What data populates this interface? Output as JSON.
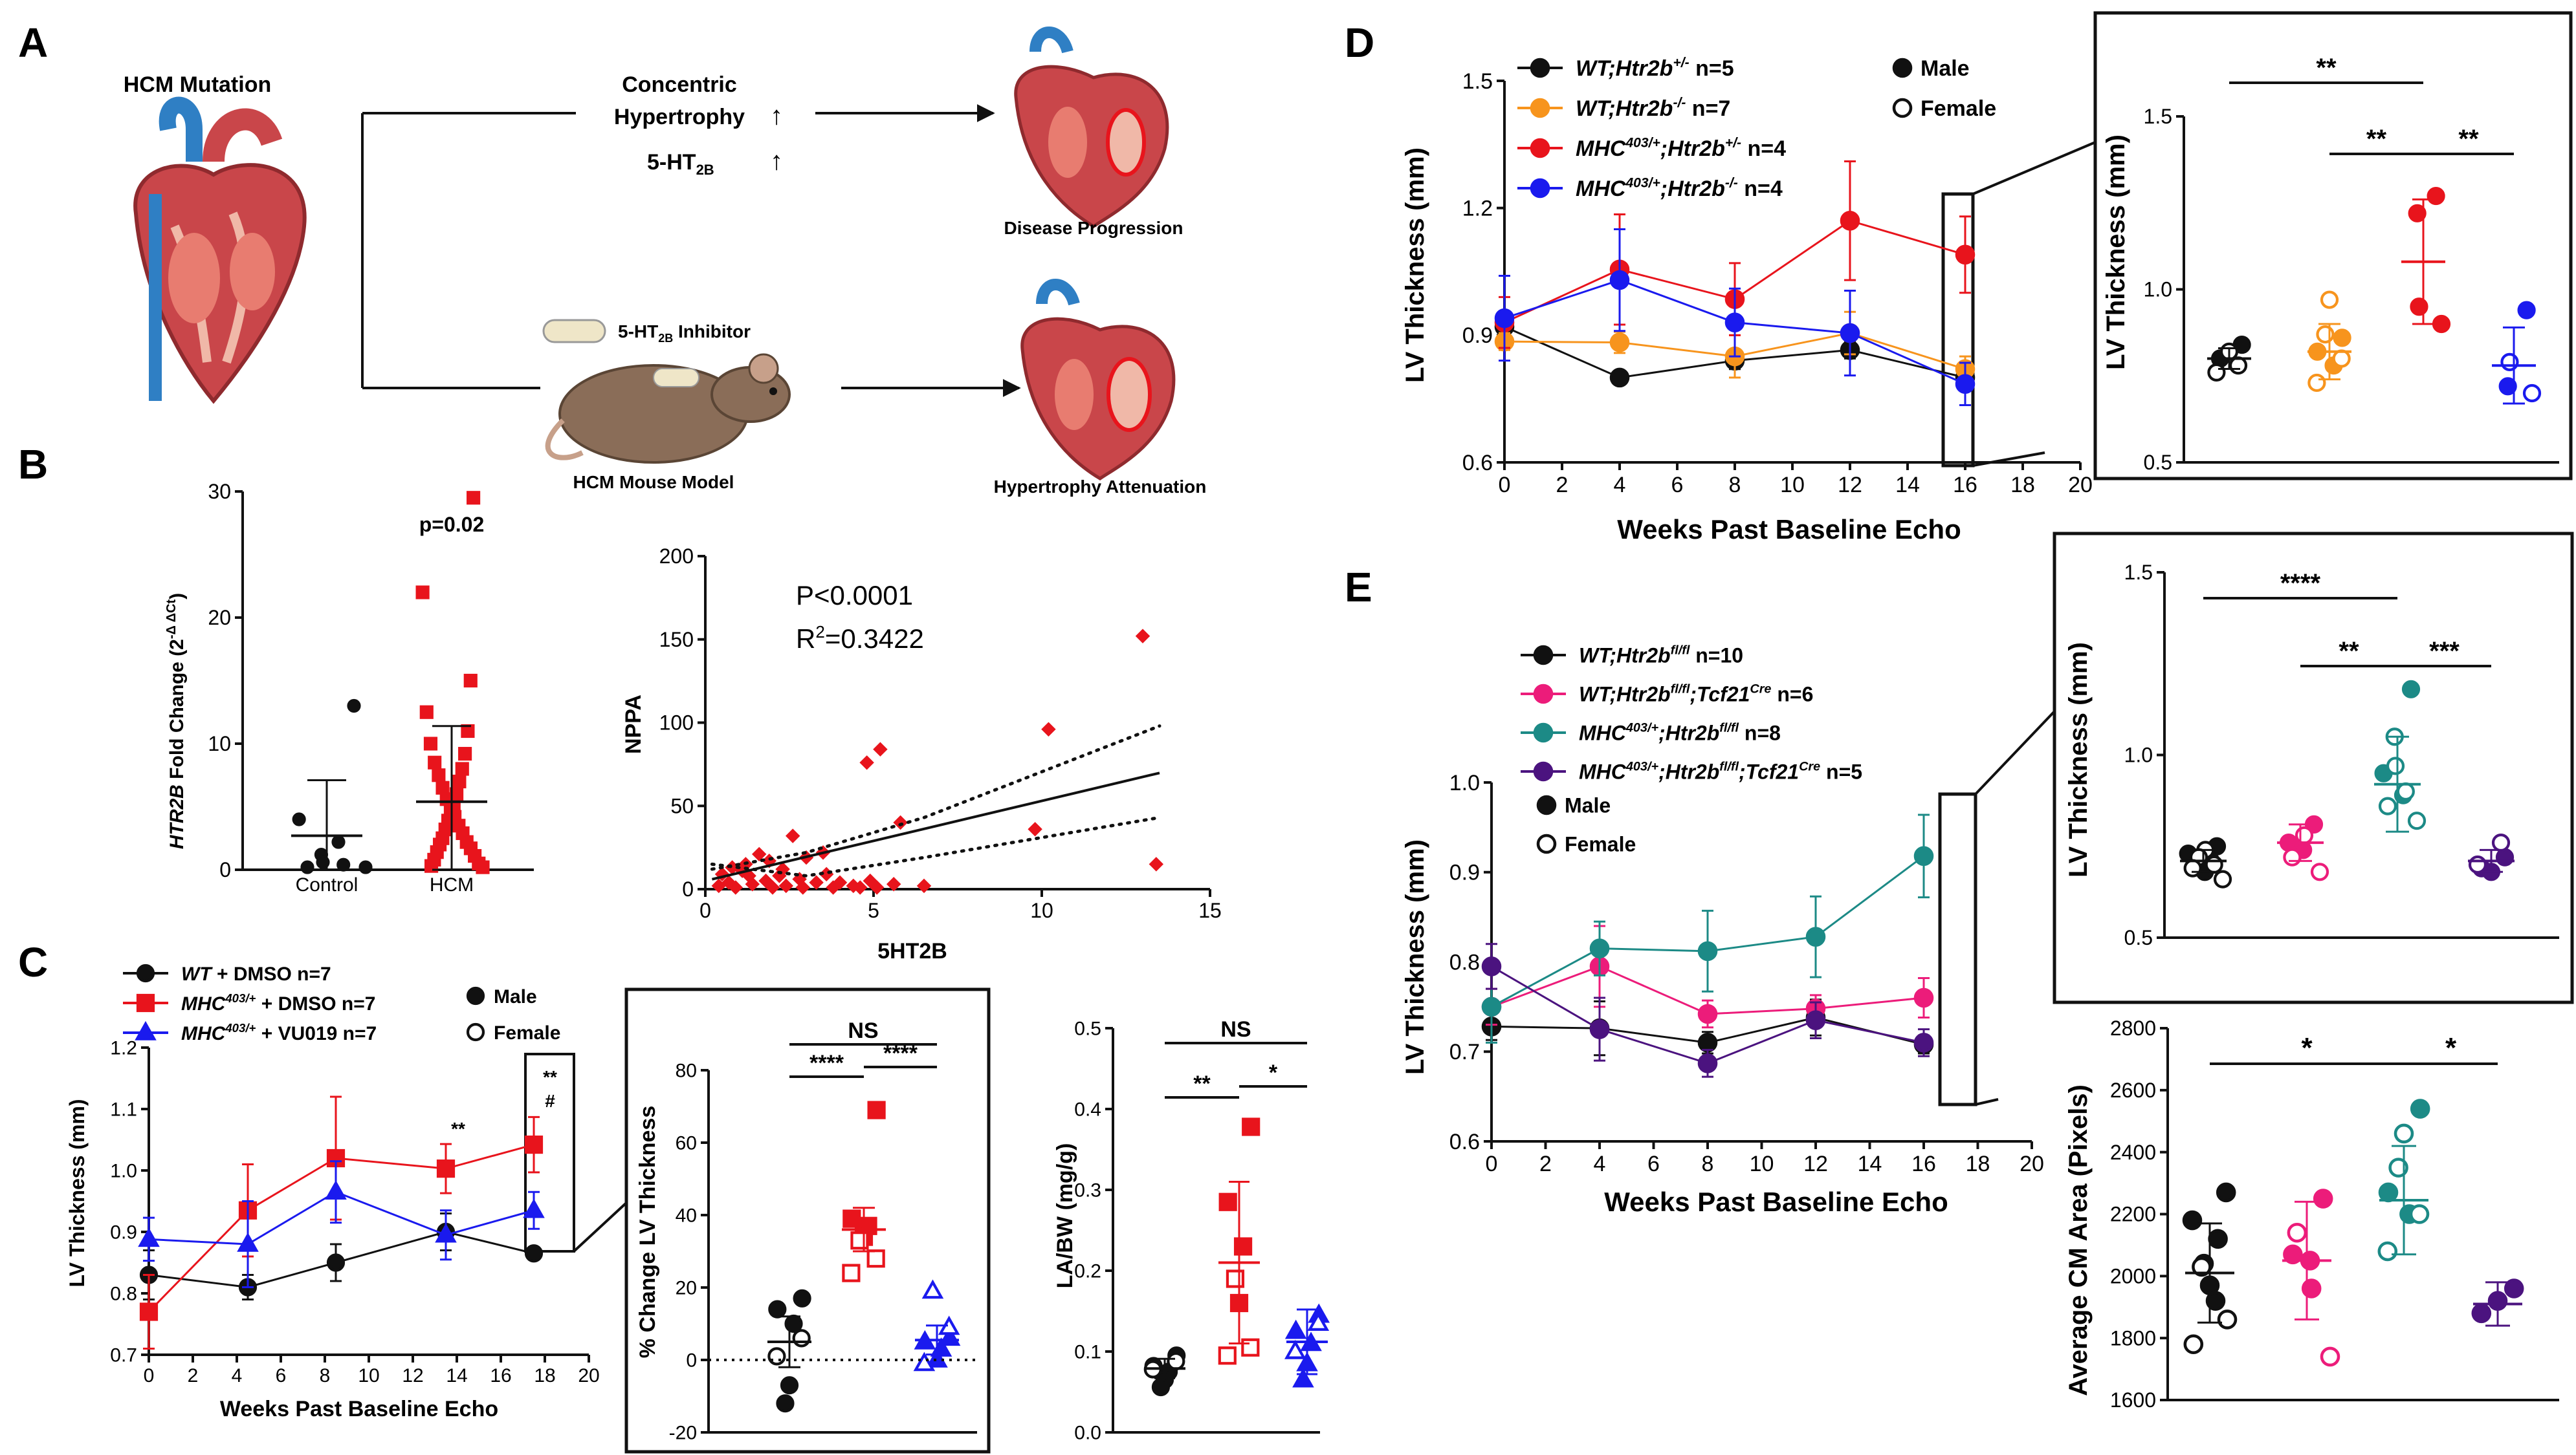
{
  "colors": {
    "black": "#111111",
    "red": "#e8141c",
    "orange": "#f7941d",
    "blue": "#1a1aee",
    "pink": "#ec1c7a",
    "teal": "#1c8a86",
    "purple": "#4b137f",
    "heart": "#c9464a",
    "heart_dark": "#8f2a2e",
    "aorta_blue": "#2f7fc4",
    "mouse": "#8a6d58"
  },
  "panel_labels": {
    "a": "A",
    "b": "B",
    "c": "C",
    "d": "D",
    "e": "E"
  },
  "panelA": {
    "mutation": "HCM Mutation",
    "concentric_l1": "Concentric",
    "concentric_l2": "Hypertrophy",
    "ht2b": "5-HT",
    "ht2b_sub": "2B",
    "progression": "Disease Progression",
    "inhibitor": "5-HT",
    "inhibitor_sub": "2B",
    "inhibitor_suffix": " Inhibitor",
    "mouse_model": "HCM Mouse Model",
    "attenuation": "Hypertrophy Attenuation",
    "up_arrow": "↑"
  },
  "chart_data": [
    {
      "id": "B1",
      "type": "scatter",
      "ylabel_gene": "HTR2B",
      "ylabel_rest": " Fold Change (2",
      "ylabel_sup": "-Δ ΔCt",
      "ylabel_close": ")",
      "p_text": "p=0.02",
      "ylim": [
        0,
        30
      ],
      "yticks": [
        0,
        10,
        20,
        30
      ],
      "categories": [
        "Control",
        "HCM"
      ],
      "groups": [
        {
          "name": "Control",
          "marker": "circle",
          "color": "#111111",
          "points": [
            13,
            4,
            2.2,
            1.2,
            0.6,
            0.4,
            0.2,
            0.2
          ],
          "mean": 2.7,
          "sd_low": 0,
          "sd_high": 7.1
        },
        {
          "name": "HCM",
          "marker": "square",
          "color": "#e8141c",
          "points": [
            29.5,
            22,
            15,
            12.5,
            11,
            10,
            9.2,
            8.5,
            8,
            7.5,
            7,
            6.5,
            6,
            5.6,
            5.2,
            4.9,
            4.5,
            4.2,
            3.9,
            3.5,
            3.2,
            2.9,
            2.5,
            2.2,
            2,
            1.7,
            1.4,
            1.1,
            0.8,
            0.5,
            0.3,
            0.2
          ],
          "mean": 5.4,
          "sd_low": 0,
          "sd_high": 11.4
        }
      ]
    },
    {
      "id": "B2",
      "type": "scatter",
      "xlabel": "5HT2B",
      "ylabel": "NPPA",
      "xlim": [
        0,
        15
      ],
      "ylim": [
        0,
        200
      ],
      "xticks": [
        0,
        5,
        10,
        15
      ],
      "yticks": [
        0,
        50,
        100,
        150,
        200
      ],
      "stat1": "P<0.0001",
      "stat2_base": "R",
      "stat2_sup": "2",
      "stat2_rest": "=0.3422",
      "points": [
        [
          13,
          152
        ],
        [
          5.2,
          84
        ],
        [
          4.8,
          76
        ],
        [
          10.2,
          96
        ],
        [
          13.4,
          15
        ],
        [
          3.5,
          22
        ],
        [
          3.0,
          19
        ],
        [
          2.6,
          32
        ],
        [
          5.8,
          40
        ],
        [
          1.2,
          15
        ],
        [
          1.6,
          21
        ],
        [
          1.9,
          17
        ],
        [
          1.4,
          3
        ],
        [
          2.2,
          8
        ],
        [
          2.8,
          6
        ],
        [
          3.3,
          4
        ],
        [
          3.6,
          9
        ],
        [
          4.0,
          4
        ],
        [
          4.4,
          2
        ],
        [
          4.9,
          5
        ],
        [
          0.4,
          2
        ],
        [
          0.7,
          4
        ],
        [
          0.9,
          1
        ],
        [
          1.1,
          11
        ],
        [
          2.0,
          1
        ],
        [
          2.4,
          2
        ],
        [
          3.8,
          1
        ],
        [
          4.6,
          1
        ],
        [
          5.1,
          1
        ],
        [
          5.6,
          3
        ],
        [
          6.5,
          2
        ],
        [
          9.8,
          36
        ],
        [
          1.3,
          8
        ],
        [
          1.8,
          5
        ],
        [
          2.3,
          12
        ],
        [
          2.9,
          1
        ],
        [
          0.5,
          9
        ],
        [
          0.8,
          13
        ]
      ],
      "fit": {
        "slope": 4.8,
        "intercept": 5
      },
      "ci_low": [
        [
          0.2,
          15
        ],
        [
          3,
          8
        ],
        [
          6.5,
          19
        ],
        [
          13.5,
          43
        ]
      ],
      "ci_high": [
        [
          0.2,
          12
        ],
        [
          3,
          22
        ],
        [
          6.5,
          43
        ],
        [
          13.5,
          98
        ]
      ]
    },
    {
      "id": "C1",
      "type": "line",
      "xlabel": "Weeks Past Baseline Echo",
      "ylabel": "LV Thickness (mm)",
      "xlim": [
        0,
        20
      ],
      "ylim": [
        0.7,
        1.2
      ],
      "xticks": [
        0,
        2,
        4,
        6,
        8,
        10,
        12,
        14,
        16,
        18,
        20
      ],
      "yticks": [
        0.7,
        0.8,
        0.9,
        1.0,
        1.1,
        1.2
      ],
      "ytick_labels": [
        "0.7",
        "0.8",
        "0.9",
        "1.0",
        "1.1",
        "1.2"
      ],
      "x": [
        0,
        4.5,
        8.5,
        13.5,
        17.5
      ],
      "series": [
        {
          "name_i": "WT",
          "name_sup": "",
          "name_rest": " + DMSO n=7",
          "color": "#111111",
          "marker": "circle",
          "values": [
            0.83,
            0.81,
            0.85,
            0.9,
            0.865
          ],
          "err": [
            0.04,
            0.02,
            0.03,
            0.03,
            0.01
          ]
        },
        {
          "name_i": "MHC",
          "name_sup": "403/+",
          "name_rest": " + DMSO n=7",
          "color": "#e8141c",
          "marker": "square",
          "values": [
            0.77,
            0.935,
            1.02,
            1.003,
            1.042
          ],
          "err": [
            0.06,
            0.075,
            0.1,
            0.04,
            0.045
          ]
        },
        {
          "name_i": "MHC",
          "name_sup": "403/+",
          "name_rest": " + VU019 n=7",
          "color": "#1a1aee",
          "marker": "triangle",
          "values": [
            0.888,
            0.88,
            0.965,
            0.895,
            0.935
          ],
          "err": [
            0.035,
            0.07,
            0.05,
            0.04,
            0.03
          ]
        }
      ],
      "annotations": [
        "**",
        "**",
        "#"
      ],
      "legend_male": "Male",
      "legend_female": "Female"
    },
    {
      "id": "C2",
      "type": "scatter",
      "ylabel": "% Change LV Thickness",
      "ylim": [
        -20,
        80
      ],
      "yticks": [
        -20,
        0,
        20,
        40,
        60,
        80
      ],
      "sig": [
        "NS",
        "****",
        "****"
      ],
      "groups": [
        {
          "color": "#111111",
          "marker": "circle",
          "filled": [
            17,
            14,
            10,
            -7,
            -12
          ],
          "open": [
            6,
            1
          ],
          "mean": 5,
          "sd": 7
        },
        {
          "color": "#e8141c",
          "marker": "square",
          "filled": [
            69,
            39,
            37,
            34
          ],
          "open": [
            33,
            28,
            24
          ],
          "mean": 36,
          "sd": 6
        },
        {
          "color": "#1a1aee",
          "marker": "triangle",
          "filled": [
            6,
            5,
            3,
            0
          ],
          "open": [
            19,
            9,
            -1
          ],
          "mean": 5.5,
          "sd": 4
        }
      ]
    },
    {
      "id": "C3",
      "type": "scatter",
      "ylabel": "LA/BW (mg/g)",
      "ylim": [
        0,
        0.5
      ],
      "yticks": [
        0,
        0.1,
        0.2,
        0.3,
        0.4,
        0.5
      ],
      "ytick_labels": [
        "0.0",
        "0.1",
        "0.2",
        "0.3",
        "0.4",
        "0.5"
      ],
      "sig": [
        "NS",
        "**",
        "*"
      ],
      "groups": [
        {
          "color": "#111111",
          "marker": "circle",
          "filled": [
            0.095,
            0.082,
            0.075,
            0.065,
            0.056
          ],
          "open": [
            0.088,
            0.078
          ],
          "mean": 0.079,
          "sd": 0.012
        },
        {
          "color": "#e8141c",
          "marker": "square",
          "filled": [
            0.378,
            0.285,
            0.23,
            0.16
          ],
          "open": [
            0.19,
            0.105,
            0.095
          ],
          "mean": 0.21,
          "sd": 0.1
        },
        {
          "color": "#1a1aee",
          "marker": "triangle",
          "filled": [
            0.145,
            0.125,
            0.11,
            0.085,
            0.065
          ],
          "open": [
            0.135,
            0.1
          ],
          "mean": 0.112,
          "sd": 0.04
        }
      ]
    },
    {
      "id": "D1",
      "type": "line",
      "xlabel": "Weeks Past Baseline Echo",
      "ylabel": "LV Thickness (mm)",
      "xlim": [
        0,
        20
      ],
      "ylim": [
        0.6,
        1.5
      ],
      "xticks": [
        0,
        2,
        4,
        6,
        8,
        10,
        12,
        14,
        16,
        18,
        20
      ],
      "yticks": [
        0.6,
        0.9,
        1.2,
        1.5
      ],
      "ytick_labels": [
        "0.6",
        "0.9",
        "1.2",
        "1.5"
      ],
      "x": [
        0,
        4,
        8,
        12,
        16
      ],
      "series": [
        {
          "name_i": "WT;Htr2b",
          "name_sup": "+/-",
          "name_rest": " n=5",
          "color": "#111111",
          "values": [
            0.92,
            0.8,
            0.84,
            0.865,
            0.8
          ],
          "err": [
            0.02,
            0.01,
            0.02,
            0.02,
            0.02
          ]
        },
        {
          "name_i": "WT;Htr2b",
          "name_sup": "-/-",
          "name_rest": " n=7",
          "color": "#f7941d",
          "values": [
            0.885,
            0.883,
            0.85,
            0.905,
            0.82
          ],
          "err": [
            0.02,
            0.025,
            0.05,
            0.05,
            0.03
          ]
        },
        {
          "name_i": "MHC",
          "name_sup": "403/+",
          "name_i2": ";Htr2b",
          "name_sup2": "+/-",
          "name_rest": " n=4",
          "color": "#e8141c",
          "values": [
            0.93,
            1.055,
            0.985,
            1.17,
            1.09
          ],
          "err": [
            0.06,
            0.13,
            0.085,
            0.14,
            0.09
          ]
        },
        {
          "name_i": "MHC",
          "name_sup": "403/+",
          "name_i2": ";Htr2b",
          "name_sup2": "-/-",
          "name_rest": " n=4",
          "color": "#1a1aee",
          "values": [
            0.94,
            1.03,
            0.93,
            0.905,
            0.785
          ],
          "err": [
            0.1,
            0.12,
            0.08,
            0.1,
            0.05
          ]
        }
      ],
      "legend_male": "Male",
      "legend_female": "Female"
    },
    {
      "id": "D2",
      "type": "scatter",
      "ylabel": "LV Thickness (mm)",
      "ylim": [
        0.5,
        1.5
      ],
      "yticks": [
        0.5,
        1.0,
        1.5
      ],
      "ytick_labels": [
        "0.5",
        "1.0",
        "1.5"
      ],
      "sig": [
        "**",
        "**",
        "**"
      ],
      "groups": [
        {
          "color": "#111111",
          "filled": [
            0.84,
            0.8
          ],
          "open": [
            0.82,
            0.78,
            0.76
          ],
          "mean": 0.8,
          "sd": 0.03
        },
        {
          "color": "#f7941d",
          "filled": [
            0.86,
            0.82,
            0.78
          ],
          "open": [
            0.97,
            0.87,
            0.8,
            0.73
          ],
          "mean": 0.82,
          "sd": 0.08
        },
        {
          "color": "#e8141c",
          "filled": [
            1.27,
            1.22,
            0.95,
            0.9
          ],
          "open": [],
          "mean": 1.08,
          "sd": 0.18
        },
        {
          "color": "#1a1aee",
          "filled": [
            0.94,
            0.72
          ],
          "open": [
            0.79,
            0.7
          ],
          "mean": 0.78,
          "sd": 0.11
        }
      ]
    },
    {
      "id": "E1",
      "type": "line",
      "xlabel": "Weeks Past Baseline Echo",
      "ylabel": "LV Thickness (mm)",
      "xlim": [
        0,
        20
      ],
      "ylim": [
        0.6,
        1.0
      ],
      "xticks": [
        0,
        2,
        4,
        6,
        8,
        10,
        12,
        14,
        16,
        18,
        20
      ],
      "yticks": [
        0.6,
        0.7,
        0.8,
        0.9,
        1.0
      ],
      "ytick_labels": [
        "0.6",
        "0.7",
        "0.8",
        "0.9",
        "1.0"
      ],
      "x": [
        0,
        4,
        8,
        12,
        16
      ],
      "series": [
        {
          "name_i": "WT;Htr2b",
          "name_sup": "fl/fl",
          "name_rest": " n=10",
          "color": "#111111",
          "values": [
            0.728,
            0.726,
            0.71,
            0.738,
            0.708
          ],
          "err": [
            0.015,
            0.03,
            0.012,
            0.02,
            0.01
          ]
        },
        {
          "name_i": "WT;Htr2b",
          "name_sup": "fl/fl",
          "name_i2": ";Tcf21",
          "name_sup2": "Cre",
          "name_rest": " n=6",
          "color": "#ec1c7a",
          "values": [
            0.75,
            0.795,
            0.742,
            0.748,
            0.76
          ],
          "err": [
            0.02,
            0.045,
            0.015,
            0.015,
            0.022
          ]
        },
        {
          "name_i": "MHC",
          "name_sup": "403/+",
          "name_i2": ";Htr2b",
          "name_sup2": "fl/fl",
          "name_rest": " n=8",
          "color": "#1c8a86",
          "values": [
            0.75,
            0.815,
            0.812,
            0.828,
            0.918
          ],
          "err": [
            0.04,
            0.03,
            0.045,
            0.045,
            0.046
          ]
        },
        {
          "name_i": "MHC",
          "name_sup": "403/+",
          "name_i2": ";Htr2b",
          "name_sup2": "fl/fl",
          "name_i3": ";Tcf21",
          "name_sup3": "Cre",
          "name_rest": " n=5",
          "color": "#4b137f",
          "values": [
            0.795,
            0.725,
            0.687,
            0.735,
            0.71
          ],
          "err": [
            0.025,
            0.035,
            0.015,
            0.02,
            0.015
          ]
        }
      ],
      "legend_male": "Male",
      "legend_female": "Female"
    },
    {
      "id": "E2",
      "type": "scatter",
      "ylabel": "LV Thickness (mm)",
      "ylim": [
        0.5,
        1.5
      ],
      "yticks": [
        0.5,
        1.0,
        1.5
      ],
      "ytick_labels": [
        "0.5",
        "1.0",
        "1.5"
      ],
      "sig": [
        "****",
        "**",
        "***"
      ],
      "groups": [
        {
          "color": "#111111",
          "filled": [
            0.75,
            0.73,
            0.71,
            0.7,
            0.68
          ],
          "open": [
            0.74,
            0.72,
            0.7,
            0.69,
            0.66
          ],
          "mean": 0.71,
          "sd": 0.03
        },
        {
          "color": "#ec1c7a",
          "filled": [
            0.81,
            0.76,
            0.74
          ],
          "open": [
            0.78,
            0.72,
            0.68
          ],
          "mean": 0.76,
          "sd": 0.05
        },
        {
          "color": "#1c8a86",
          "filled": [
            1.18,
            0.95,
            0.89
          ],
          "open": [
            1.05,
            0.97,
            0.9,
            0.86,
            0.82
          ],
          "mean": 0.92,
          "sd": 0.13
        },
        {
          "color": "#4b137f",
          "filled": [
            0.72,
            0.69,
            0.68
          ],
          "open": [
            0.76,
            0.7
          ],
          "mean": 0.71,
          "sd": 0.03
        }
      ]
    },
    {
      "id": "E3",
      "type": "scatter",
      "ylabel": "Average CM Area (Pixels)",
      "ylim": [
        1600,
        2800
      ],
      "yticks": [
        1600,
        1800,
        2000,
        2200,
        2400,
        2600,
        2800
      ],
      "sig": [
        "*",
        "*"
      ],
      "groups": [
        {
          "color": "#111111",
          "filled": [
            2270,
            2180,
            2120,
            2040,
            1970,
            1920
          ],
          "open": [
            2030,
            1860,
            1780
          ],
          "mean": 2010,
          "sd": 160
        },
        {
          "color": "#ec1c7a",
          "filled": [
            2250,
            2070,
            2050,
            1960
          ],
          "open": [
            2140,
            1740
          ],
          "mean": 2050,
          "sd": 190
        },
        {
          "color": "#1c8a86",
          "filled": [
            2540,
            2270,
            2200
          ],
          "open": [
            2460,
            2350,
            2200,
            2080
          ],
          "mean": 2245,
          "sd": 175
        },
        {
          "color": "#4b137f",
          "filled": [
            1960,
            1920,
            1880
          ],
          "open": [],
          "mean": 1910,
          "sd": 70
        }
      ]
    }
  ]
}
